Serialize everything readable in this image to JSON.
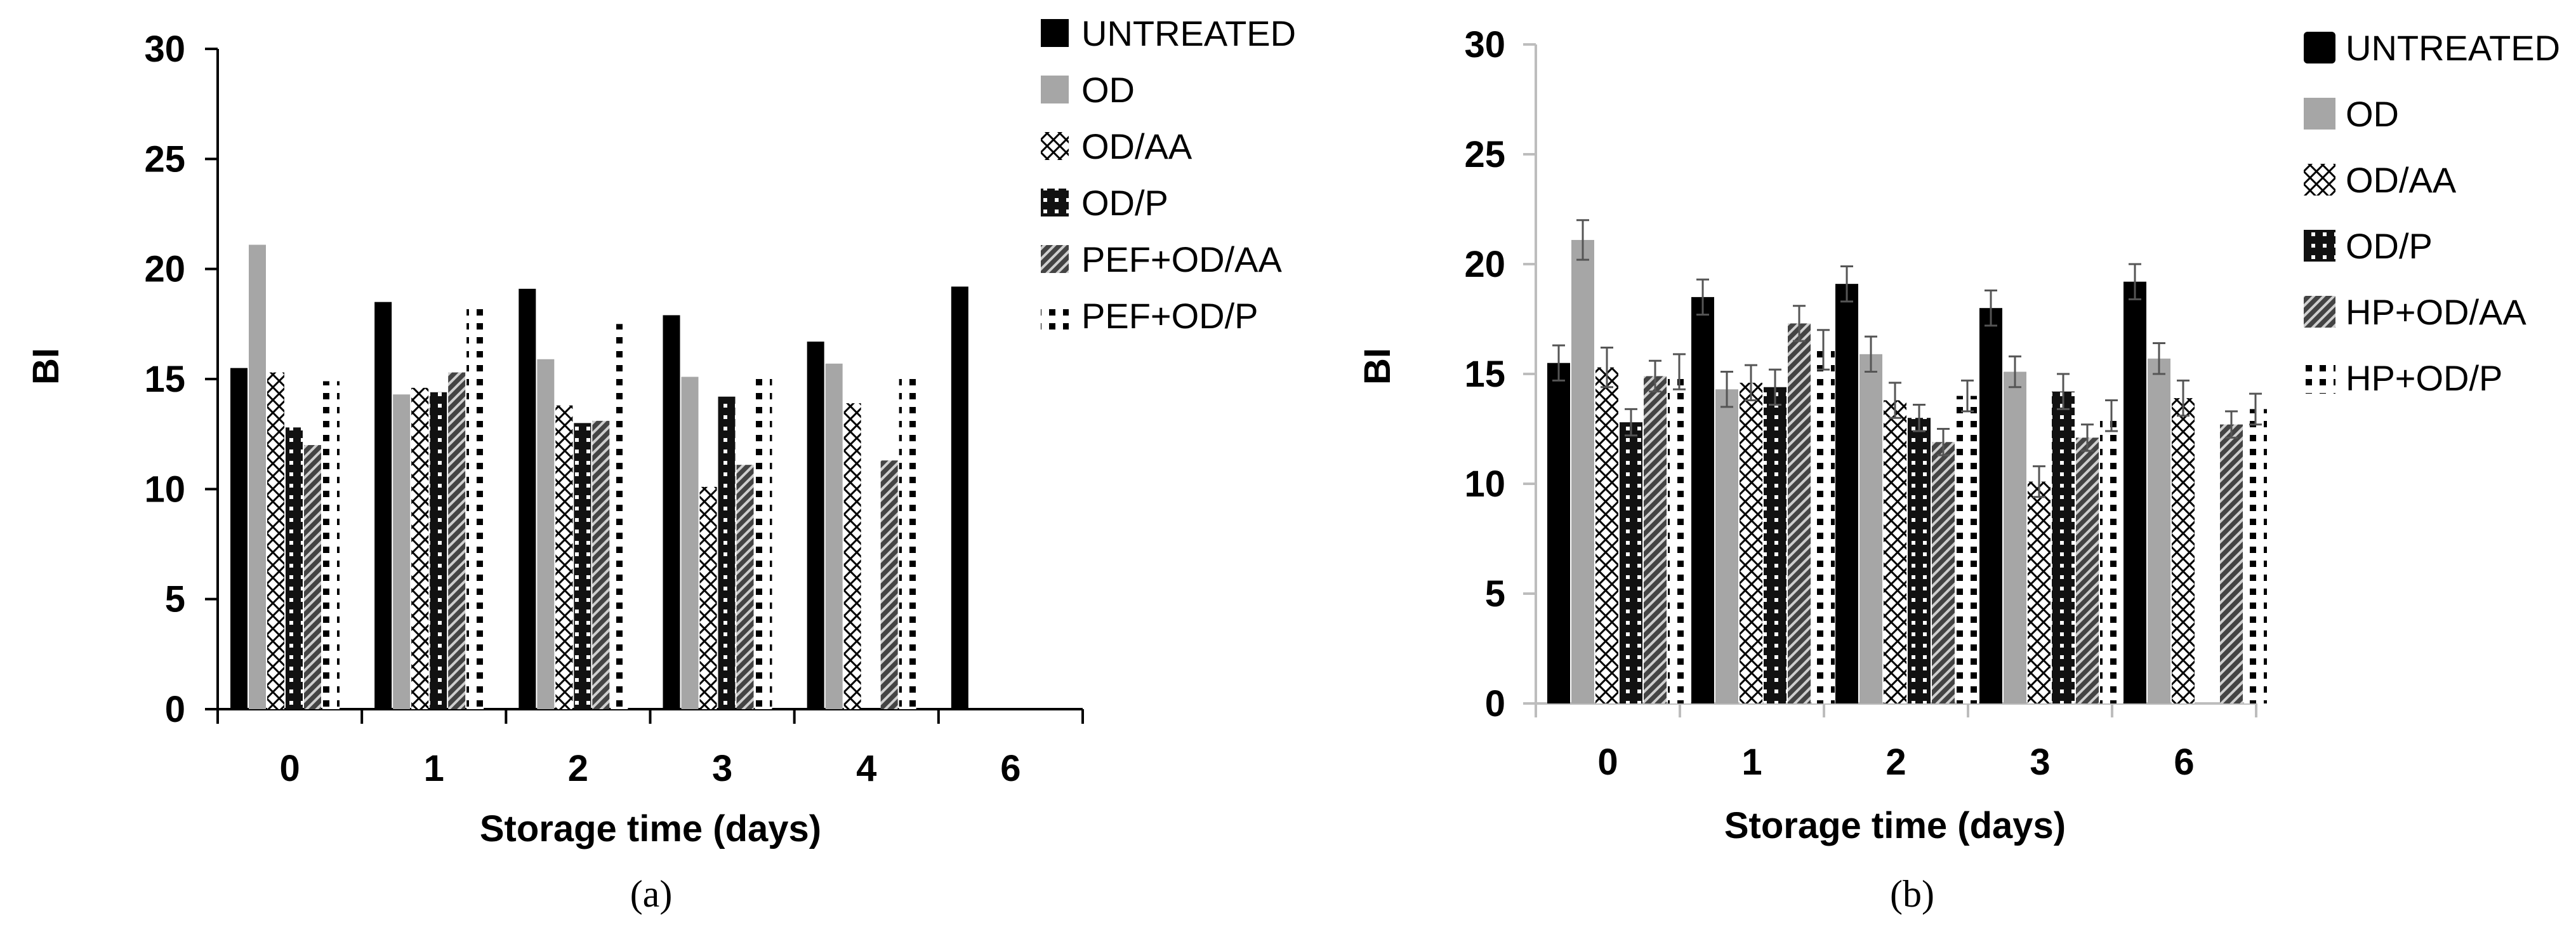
{
  "chart_data": [
    {
      "id": "a",
      "type": "bar",
      "caption": "(a)",
      "xlabel": "Storage time (days)",
      "ylabel": "BI",
      "ylim": [
        0,
        30
      ],
      "yticks": [
        "0",
        "5",
        "10",
        "15",
        "20",
        "25",
        "30"
      ],
      "categories": [
        "0",
        "1",
        "2",
        "3",
        "4",
        "6"
      ],
      "legend_position": "right",
      "series": [
        {
          "name": "UNTREATED",
          "pattern": "solid-black",
          "values": [
            15.5,
            18.5,
            19.1,
            17.9,
            16.7,
            19.2
          ]
        },
        {
          "name": "OD",
          "pattern": "solid-gray",
          "values": [
            21.1,
            14.3,
            15.9,
            15.1,
            15.7,
            null
          ]
        },
        {
          "name": "OD/AA",
          "pattern": "crosshatch",
          "values": [
            15.3,
            14.6,
            13.8,
            10.1,
            13.9,
            null
          ]
        },
        {
          "name": "OD/P",
          "pattern": "dots-dark",
          "values": [
            12.8,
            14.4,
            13.0,
            14.2,
            null,
            null
          ]
        },
        {
          "name": "PEF+OD/AA",
          "pattern": "diagonal-dark",
          "values": [
            12.0,
            15.3,
            13.1,
            11.1,
            11.3,
            null
          ]
        },
        {
          "name": "PEF+OD/P",
          "pattern": "dots-light",
          "values": [
            14.9,
            18.5,
            17.5,
            15.1,
            15.0,
            null
          ]
        }
      ]
    },
    {
      "id": "b",
      "type": "bar",
      "caption": "(b)",
      "xlabel": "Storage time (days)",
      "ylabel": "BI",
      "ylim": [
        0,
        30
      ],
      "yticks": [
        "0",
        "5",
        "10",
        "15",
        "20",
        "25",
        "30"
      ],
      "categories": [
        "0",
        "1",
        "2",
        "3",
        "6"
      ],
      "legend_position": "right",
      "error_bars": true,
      "series": [
        {
          "name": "UNTREATED",
          "pattern": "solid-black",
          "values": [
            15.5,
            18.5,
            19.1,
            18.0,
            19.2
          ],
          "errors": [
            0.8,
            0.8,
            0.8,
            0.8,
            0.8
          ]
        },
        {
          "name": "OD",
          "pattern": "solid-gray",
          "values": [
            21.1,
            14.3,
            15.9,
            15.1,
            15.7
          ],
          "errors": [
            0.9,
            0.8,
            0.8,
            0.7,
            0.7
          ]
        },
        {
          "name": "OD/AA",
          "pattern": "crosshatch",
          "values": [
            15.3,
            14.6,
            13.8,
            10.1,
            13.9
          ],
          "errors": [
            0.9,
            0.8,
            0.8,
            0.7,
            0.8
          ]
        },
        {
          "name": "OD/P",
          "pattern": "dots-dark",
          "values": [
            12.8,
            14.4,
            13.0,
            14.2,
            null
          ],
          "errors": [
            0.6,
            0.8,
            0.6,
            0.8,
            null
          ]
        },
        {
          "name": "HP+OD/AA",
          "pattern": "diagonal-dark",
          "values": [
            14.9,
            17.3,
            11.9,
            12.1,
            12.7
          ],
          "errors": [
            0.7,
            0.8,
            0.6,
            0.6,
            0.6
          ]
        },
        {
          "name": "HP+OD/P",
          "pattern": "dots-light",
          "values": [
            15.1,
            16.1,
            14.0,
            13.1,
            13.4
          ],
          "errors": [
            0.8,
            0.9,
            0.7,
            0.7,
            0.7
          ]
        }
      ]
    }
  ]
}
